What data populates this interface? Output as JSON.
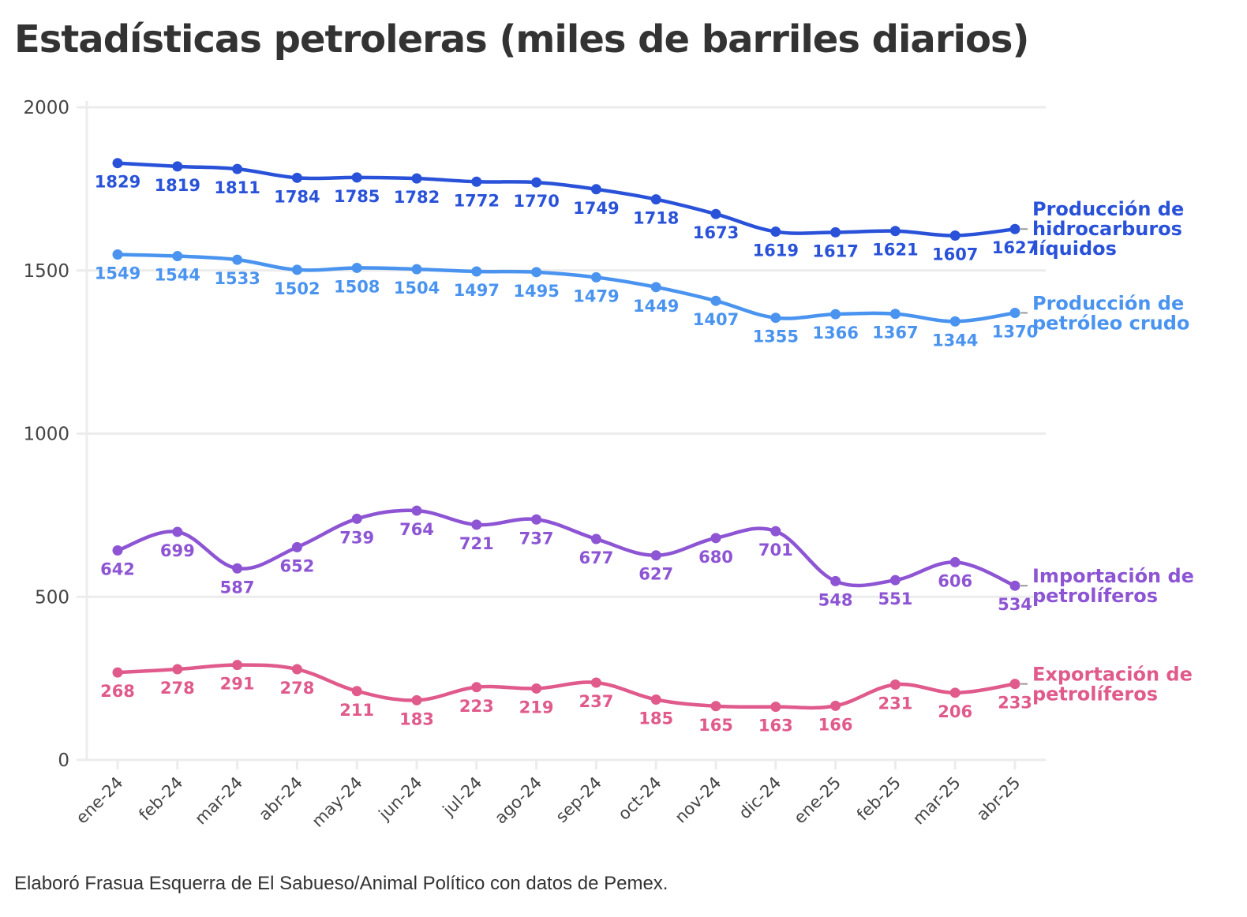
{
  "title": "Estadísticas petroleras (miles de barriles diarios)",
  "footer": "Elaboró Frasua Esquerra de El Sabueso/Animal Político con datos de Pemex.",
  "chart_data": {
    "type": "line",
    "title": "Estadísticas petroleras (miles de barriles diarios)",
    "xlabel": "",
    "ylabel": "",
    "ylim": [
      0,
      2000
    ],
    "yticks": [
      0,
      500,
      1000,
      1500,
      2000
    ],
    "grid": true,
    "legend": "right, labels at line ends",
    "categories": [
      "ene-24",
      "feb-24",
      "mar-24",
      "abr-24",
      "may-24",
      "jun-24",
      "jul-24",
      "ago-24",
      "sep-24",
      "oct-24",
      "nov-24",
      "dic-24",
      "ene-25",
      "feb-25",
      "mar-25",
      "abr-25"
    ],
    "series": [
      {
        "name": "Producción de hidrocarburos líquidos",
        "label_lines": [
          "Producción de",
          "hidrocarburos",
          "líquidos"
        ],
        "color": "#2952d9",
        "values": [
          1829,
          1819,
          1811,
          1784,
          1785,
          1782,
          1772,
          1770,
          1749,
          1718,
          1673,
          1619,
          1617,
          1621,
          1607,
          1627
        ]
      },
      {
        "name": "Producción de petróleo crudo",
        "label_lines": [
          "Producción de",
          "petróleo crudo"
        ],
        "color": "#4a94f0",
        "values": [
          1549,
          1544,
          1533,
          1502,
          1508,
          1504,
          1497,
          1495,
          1479,
          1449,
          1407,
          1355,
          1366,
          1367,
          1344,
          1370
        ]
      },
      {
        "name": "Importación de petrolíferos",
        "label_lines": [
          "Importación de",
          "petrolíferos"
        ],
        "color": "#8d55d4",
        "values": [
          642,
          699,
          587,
          652,
          739,
          764,
          721,
          737,
          677,
          627,
          680,
          701,
          548,
          551,
          606,
          534
        ]
      },
      {
        "name": "Exportación de petrolíferos",
        "label_lines": [
          "Exportación de",
          "petrolíferos"
        ],
        "color": "#e05a8c",
        "values": [
          268,
          278,
          291,
          278,
          211,
          183,
          223,
          219,
          237,
          185,
          165,
          163,
          166,
          231,
          206,
          233
        ]
      }
    ]
  }
}
